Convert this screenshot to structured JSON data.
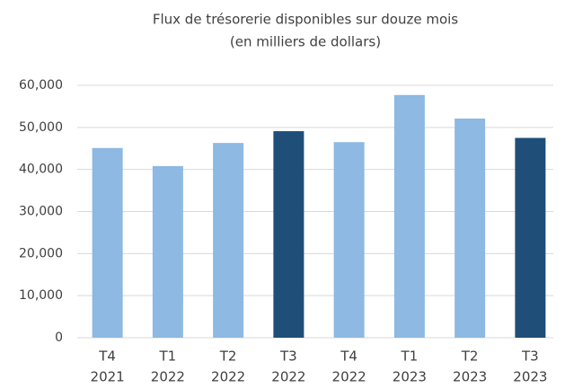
{
  "chart_data": {
    "type": "bar",
    "title": [
      "Flux de trésorerie disponibles sur douze mois",
      "(en milliers de dollars)"
    ],
    "categories": [
      [
        "T4",
        "2021"
      ],
      [
        "T1",
        "2022"
      ],
      [
        "T2",
        "2022"
      ],
      [
        "T3",
        "2022"
      ],
      [
        "T4",
        "2022"
      ],
      [
        "T1",
        "2023"
      ],
      [
        "T2",
        "2023"
      ],
      [
        "T3",
        "2023"
      ]
    ],
    "values": [
      45100,
      40800,
      46300,
      49100,
      46500,
      57700,
      52100,
      47500
    ],
    "colors": [
      "#8db9e2",
      "#8db9e2",
      "#8db9e2",
      "#1f4e79",
      "#8db9e2",
      "#8db9e2",
      "#8db9e2",
      "#1f4e79"
    ],
    "ylim": [
      0,
      60000
    ],
    "yticks": [
      0,
      {
        "value": 10000,
        "label": "10,000"
      },
      {
        "value": 20000,
        "label": "20,000"
      },
      {
        "value": 30000,
        "label": "30,000"
      },
      {
        "value": 40000,
        "label": "40,000"
      },
      {
        "value": 50000,
        "label": "50,000"
      },
      {
        "value": 60000,
        "label": "60,000"
      }
    ],
    "grid": true
  }
}
